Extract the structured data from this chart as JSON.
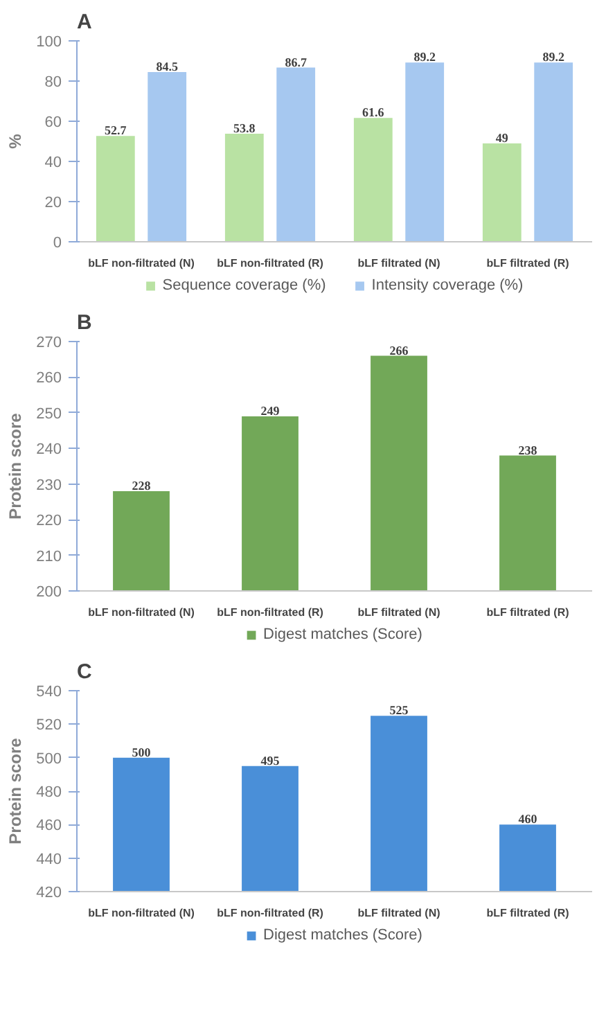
{
  "chart_data": [
    {
      "type": "bar",
      "title": "A",
      "ylabel": "%",
      "categories": [
        "bLF non-filtrated (N)",
        "bLF non-filtrated (R)",
        "bLF filtrated (N)",
        "bLF filtrated (R)"
      ],
      "series": [
        {
          "name": "Sequence coverage (%)",
          "color": "#b9e2a3",
          "values": [
            52.7,
            53.8,
            61.6,
            49
          ]
        },
        {
          "name": "Intensity coverage (%)",
          "color": "#a6c8f0",
          "values": [
            84.5,
            86.7,
            89.2,
            89.2
          ]
        }
      ],
      "ylim": [
        0,
        100
      ],
      "yticks": [
        0,
        20,
        40,
        60,
        80,
        100
      ],
      "data_labels": true,
      "legend": "bottom",
      "grid": false
    },
    {
      "type": "bar",
      "title": "B",
      "ylabel": "Protein score",
      "categories": [
        "bLF non-filtrated (N)",
        "bLF non-filtrated (R)",
        "bLF filtrated (N)",
        "bLF filtrated (R)"
      ],
      "series": [
        {
          "name": "Digest matches (Score)",
          "color": "#72a858",
          "values": [
            228,
            249,
            266,
            238
          ]
        }
      ],
      "ylim": [
        200,
        270
      ],
      "yticks": [
        200,
        210,
        220,
        230,
        240,
        250,
        260,
        270
      ],
      "data_labels": true,
      "legend": "bottom",
      "grid": false
    },
    {
      "type": "bar",
      "title": "C",
      "ylabel": "Protein score",
      "categories": [
        "bLF non-filtrated (N)",
        "bLF non-filtrated (R)",
        "bLF filtrated (N)",
        "bLF filtrated (R)"
      ],
      "series": [
        {
          "name": "Digest matches (Score)",
          "color": "#4a8fd8",
          "values": [
            500,
            495,
            525,
            460
          ]
        }
      ],
      "ylim": [
        420,
        540
      ],
      "yticks": [
        420,
        440,
        460,
        480,
        500,
        520,
        540
      ],
      "data_labels": true,
      "legend": "bottom",
      "grid": false
    }
  ]
}
